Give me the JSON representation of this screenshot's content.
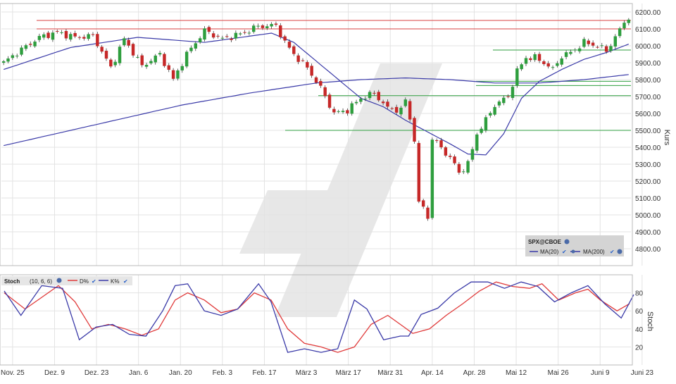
{
  "colors": {
    "up": "#2e9e3e",
    "down": "#c62828",
    "ma": "#3a3aa8",
    "resistance": "#d94040",
    "support": "#2e9e3e",
    "stoch_k": "#3a3aa8",
    "stoch_d": "#e03a3a",
    "grid": "#e3e3e3"
  },
  "chart_data": [
    {
      "type": "candlestick",
      "ylabel": "Kurs",
      "ylim": [
        4700,
        6250
      ],
      "yticks": [
        "4800.00",
        "4900.00",
        "5000.00",
        "5100.00",
        "5200.00",
        "5300.00",
        "5400.00",
        "5500.00",
        "5600.00",
        "5700.00",
        "5800.00",
        "5900.00",
        "6000.00",
        "6100.00",
        "6200.00"
      ],
      "xticks": [
        "Nov. 25",
        "Dez. 9",
        "Dez. 23",
        "Jan. 6",
        "Jan. 20",
        "Feb. 3",
        "Feb. 17",
        "März 3",
        "März 17",
        "März 31",
        "Apr. 14",
        "Apr. 28",
        "Mai 12",
        "Mai 26",
        "Juni 9",
        "Juni 23"
      ],
      "grid": true,
      "legend": {
        "title": "SPX@CBOE",
        "items": [
          "MA(20)",
          "MA(200)"
        ],
        "placement": "bottom-right"
      },
      "resistance_levels": [
        6150,
        6100
      ],
      "support_levels": [
        5975,
        5790,
        5765,
        5705,
        5500
      ],
      "close_anchors": [
        [
          0,
          5900
        ],
        [
          3,
          5960
        ],
        [
          8,
          6050
        ],
        [
          12,
          6080
        ],
        [
          16,
          6050
        ],
        [
          20,
          6060
        ],
        [
          24,
          5870
        ],
        [
          27,
          6040
        ],
        [
          31,
          5880
        ],
        [
          35,
          5950
        ],
        [
          38,
          5800
        ],
        [
          41,
          5950
        ],
        [
          45,
          6090
        ],
        [
          49,
          6040
        ],
        [
          53,
          6070
        ],
        [
          57,
          6115
        ],
        [
          61,
          6120
        ],
        [
          63,
          6020
        ],
        [
          65,
          5950
        ],
        [
          68,
          5870
        ],
        [
          71,
          5750
        ],
        [
          74,
          5600
        ],
        [
          77,
          5620
        ],
        [
          80,
          5690
        ],
        [
          83,
          5720
        ],
        [
          86,
          5630
        ],
        [
          89,
          5620
        ],
        [
          90,
          5680
        ],
        [
          92,
          5450
        ],
        [
          93,
          5060
        ],
        [
          94,
          5050
        ],
        [
          95,
          4985
        ],
        [
          96,
          5450
        ],
        [
          98,
          5400
        ],
        [
          101,
          5300
        ],
        [
          102,
          5250
        ],
        [
          104,
          5300
        ],
        [
          106,
          5480
        ],
        [
          108,
          5560
        ],
        [
          110,
          5650
        ],
        [
          113,
          5700
        ],
        [
          115,
          5850
        ],
        [
          117,
          5930
        ],
        [
          119,
          5930
        ],
        [
          121,
          5900
        ],
        [
          123,
          5860
        ],
        [
          125,
          5940
        ],
        [
          127,
          5960
        ],
        [
          130,
          6020
        ],
        [
          133,
          6000
        ],
        [
          135,
          5970
        ],
        [
          137,
          6050
        ],
        [
          139,
          6140
        ],
        [
          140,
          6170
        ]
      ],
      "ma20": [
        [
          0,
          5860
        ],
        [
          15,
          5990
        ],
        [
          30,
          6050
        ],
        [
          45,
          6020
        ],
        [
          60,
          6075
        ],
        [
          65,
          6020
        ],
        [
          70,
          5910
        ],
        [
          75,
          5800
        ],
        [
          80,
          5690
        ],
        [
          85,
          5640
        ],
        [
          90,
          5560
        ],
        [
          95,
          5490
        ],
        [
          100,
          5420
        ],
        [
          104,
          5360
        ],
        [
          108,
          5355
        ],
        [
          112,
          5480
        ],
        [
          116,
          5690
        ],
        [
          120,
          5790
        ],
        [
          125,
          5860
        ],
        [
          130,
          5920
        ],
        [
          135,
          5960
        ],
        [
          140,
          6010
        ]
      ],
      "ma200": [
        [
          0,
          5410
        ],
        [
          20,
          5530
        ],
        [
          40,
          5650
        ],
        [
          55,
          5720
        ],
        [
          70,
          5780
        ],
        [
          80,
          5800
        ],
        [
          90,
          5810
        ],
        [
          100,
          5800
        ],
        [
          110,
          5780
        ],
        [
          120,
          5780
        ],
        [
          130,
          5800
        ],
        [
          140,
          5830
        ]
      ]
    },
    {
      "type": "line",
      "title": "Stoch",
      "params": "(10, 6, 6)",
      "ylabel": "Stoch",
      "ylim": [
        0,
        100
      ],
      "yticks": [
        "20",
        "40",
        "60",
        "80"
      ],
      "series": [
        {
          "name": "D%",
          "values": [
            [
              0,
              80
            ],
            [
              5,
              62
            ],
            [
              9,
              75
            ],
            [
              13,
              88
            ],
            [
              17,
              70
            ],
            [
              21,
              40
            ],
            [
              25,
              45
            ],
            [
              29,
              40
            ],
            [
              33,
              33
            ],
            [
              37,
              40
            ],
            [
              41,
              72
            ],
            [
              44,
              80
            ],
            [
              48,
              72
            ],
            [
              52,
              58
            ],
            [
              56,
              62
            ],
            [
              60,
              80
            ],
            [
              64,
              72
            ],
            [
              68,
              40
            ],
            [
              72,
              24
            ],
            [
              76,
              20
            ],
            [
              80,
              14
            ],
            [
              84,
              20
            ],
            [
              88,
              45
            ],
            [
              92,
              55
            ],
            [
              95,
              45
            ],
            [
              98,
              35
            ],
            [
              102,
              40
            ],
            [
              106,
              55
            ],
            [
              110,
              68
            ],
            [
              114,
              82
            ],
            [
              118,
              92
            ],
            [
              122,
              87
            ],
            [
              126,
              85
            ],
            [
              129,
              90
            ],
            [
              133,
              72
            ],
            [
              137,
              80
            ],
            [
              140,
              84
            ],
            [
              143,
              72
            ],
            [
              147,
              60
            ],
            [
              150,
              68
            ]
          ]
        },
        {
          "name": "K%",
          "values": [
            [
              0,
              82
            ],
            [
              4,
              55
            ],
            [
              9,
              88
            ],
            [
              14,
              85
            ],
            [
              18,
              28
            ],
            [
              22,
              42
            ],
            [
              26,
              45
            ],
            [
              30,
              34
            ],
            [
              34,
              32
            ],
            [
              38,
              60
            ],
            [
              41,
              88
            ],
            [
              44,
              90
            ],
            [
              48,
              60
            ],
            [
              52,
              55
            ],
            [
              56,
              62
            ],
            [
              61,
              90
            ],
            [
              64,
              70
            ],
            [
              68,
              14
            ],
            [
              72,
              18
            ],
            [
              76,
              14
            ],
            [
              80,
              18
            ],
            [
              84,
              72
            ],
            [
              87,
              62
            ],
            [
              91,
              28
            ],
            [
              95,
              32
            ],
            [
              97,
              32
            ],
            [
              100,
              56
            ],
            [
              104,
              63
            ],
            [
              108,
              80
            ],
            [
              112,
              92
            ],
            [
              116,
              92
            ],
            [
              120,
              85
            ],
            [
              124,
              92
            ],
            [
              128,
              87
            ],
            [
              132,
              70
            ],
            [
              136,
              80
            ],
            [
              140,
              88
            ],
            [
              144,
              68
            ],
            [
              148,
              52
            ],
            [
              151,
              78
            ]
          ]
        }
      ]
    }
  ]
}
